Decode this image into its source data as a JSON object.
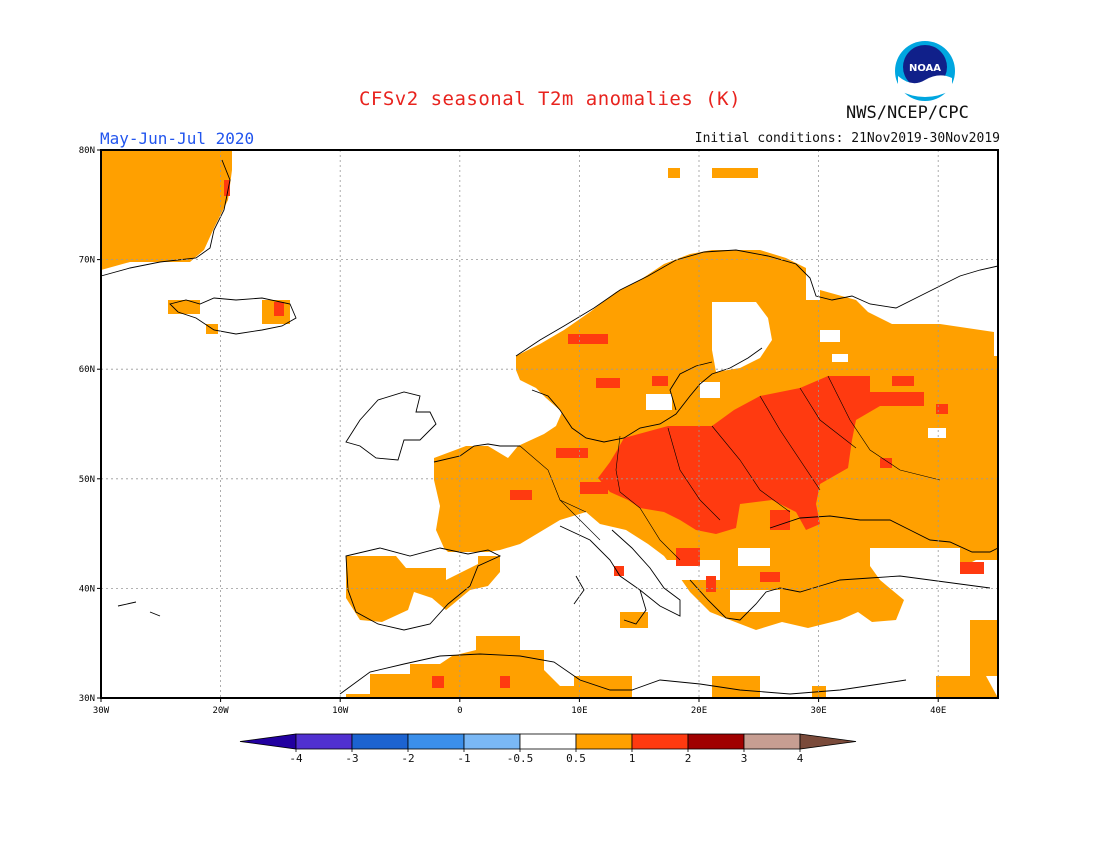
{
  "header": {
    "title": "CFSv2 seasonal T2m anomalies (K)",
    "period": "May-Jun-Jul 2020",
    "initial_conditions": "Initial conditions: 21Nov2019-30Nov2019",
    "agency": "NWS/NCEP/CPC",
    "logo_text": "NOAA"
  },
  "map": {
    "region": "Europe",
    "lon_range": [
      -30,
      45
    ],
    "lat_range": [
      30,
      80
    ],
    "lat_labels": [
      "80N",
      "70N",
      "60N",
      "50N",
      "40N",
      "30N"
    ],
    "lon_labels": [
      "30W",
      "20W",
      "10W",
      "0",
      "10E",
      "20E",
      "30E",
      "40E"
    ]
  },
  "legend": {
    "colors": [
      "#2200a0",
      "#5030d0",
      "#1c63d0",
      "#3b8fea",
      "#7ab8f5",
      "#ffffff",
      "#ffa000",
      "#ff3a10",
      "#a00000",
      "#c79e92",
      "#7a4a3a"
    ],
    "labels": [
      "-4",
      "-3",
      "-2",
      "-1",
      "-0.5",
      "0.5",
      "1",
      "2",
      "3",
      "4"
    ]
  },
  "palette": {
    "land": "#ffffff",
    "anomaly_0_5_to_1": "#ffa000",
    "anomaly_1_to_2": "#ff3a10",
    "coast": "#000000"
  }
}
